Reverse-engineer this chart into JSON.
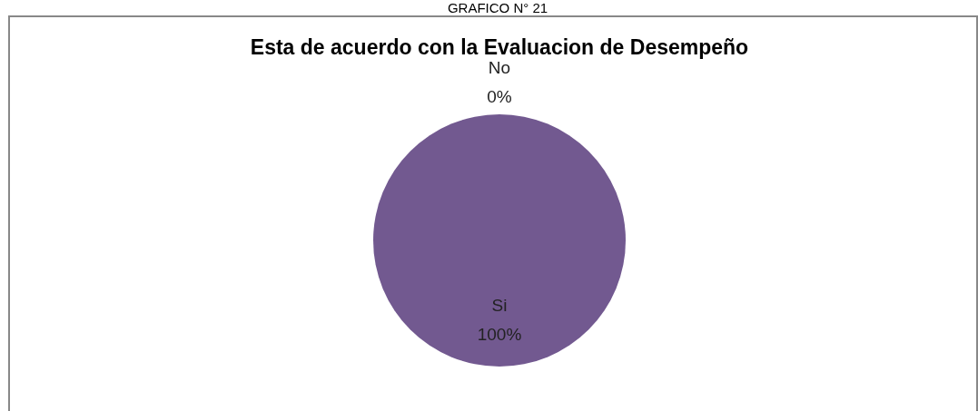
{
  "chart_data": {
    "type": "pie",
    "title": "Esta de acuerdo con la Evaluacion de Desempeño",
    "annotations": [
      "GRAFICO N° 21"
    ],
    "categories": [
      "No",
      "Si"
    ],
    "values": [
      0,
      100
    ],
    "colors": [
      "#4f81bd",
      "#725990"
    ],
    "value_labels": [
      "0%",
      "100%"
    ]
  }
}
